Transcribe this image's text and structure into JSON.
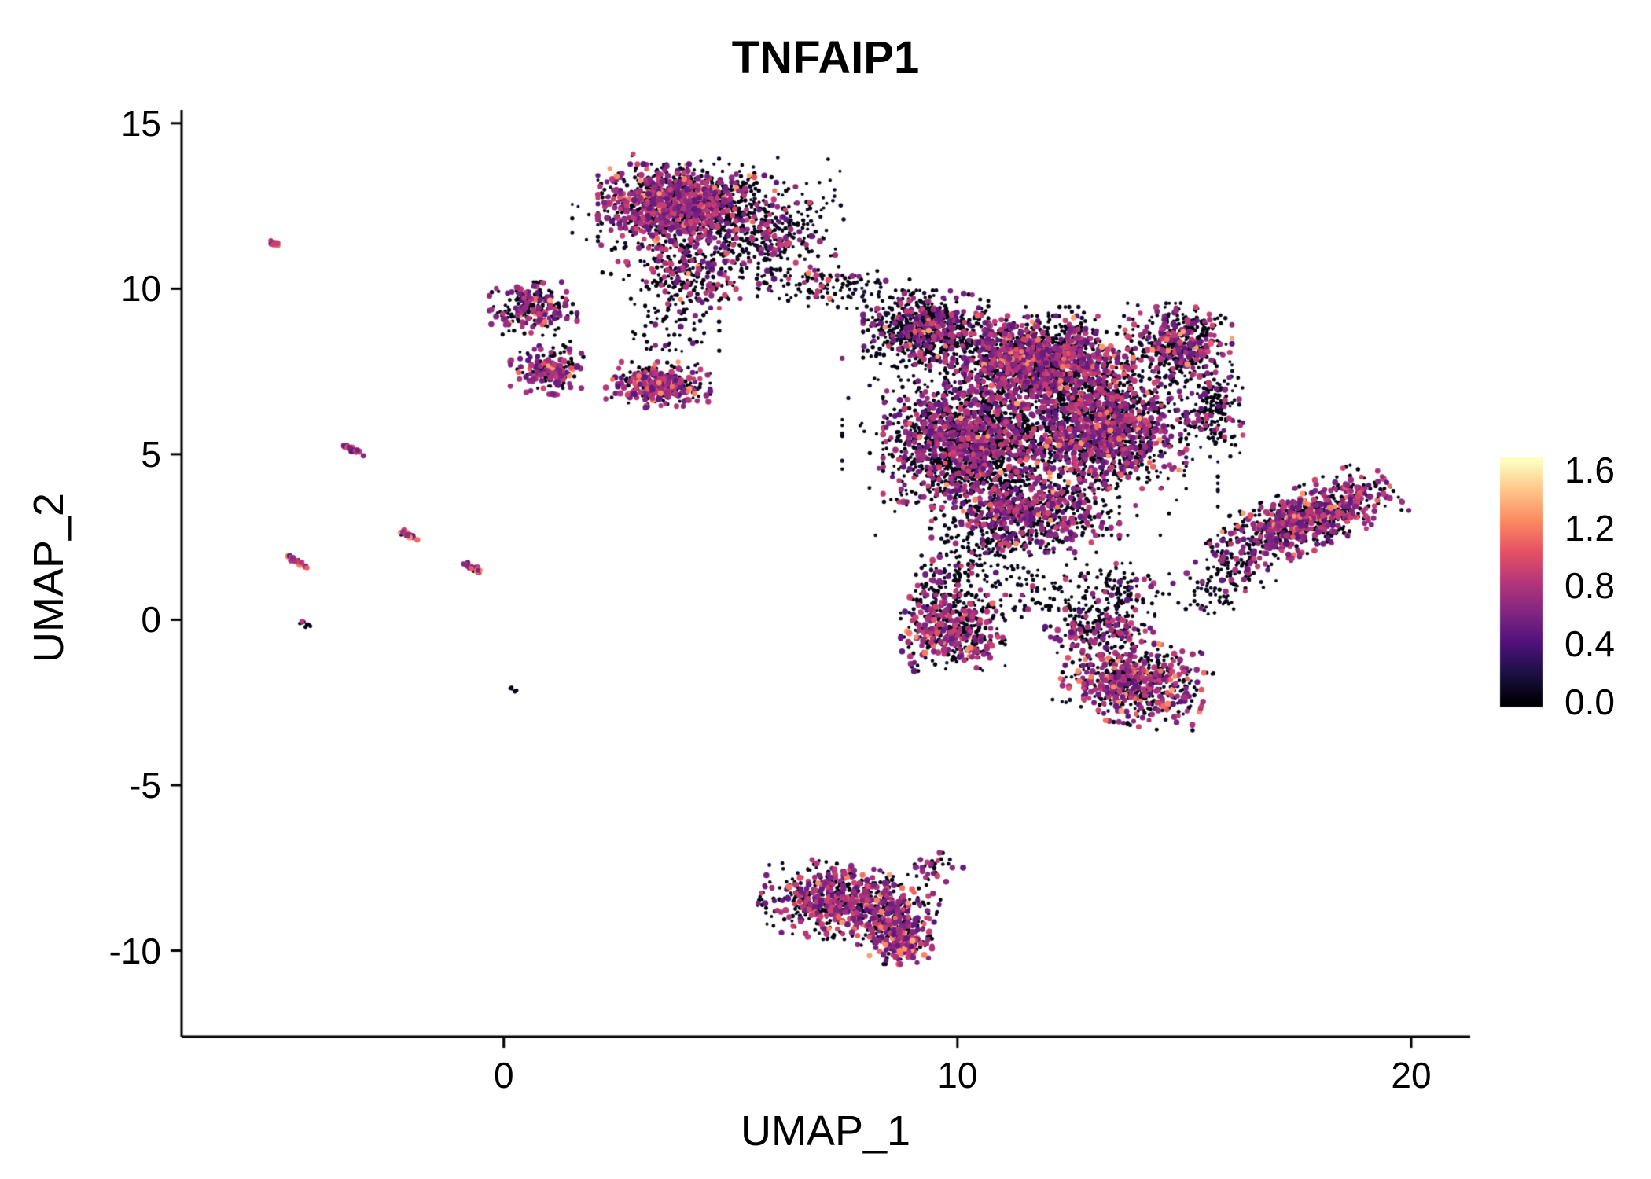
{
  "chart_data": {
    "type": "scatter",
    "title": "TNFAIP1",
    "xlabel": "UMAP_1",
    "ylabel": "UMAP_2",
    "xlim": [
      -7.1,
      21.3
    ],
    "ylim": [
      -12.6,
      15.4
    ],
    "grid": false,
    "xticks": [
      {
        "value": 0,
        "label": "0"
      },
      {
        "value": 10,
        "label": "10"
      },
      {
        "value": 20,
        "label": "20"
      }
    ],
    "yticks": [
      {
        "value": 15,
        "label": "15"
      },
      {
        "value": 10,
        "label": "10"
      },
      {
        "value": 5,
        "label": "5"
      },
      {
        "value": 0,
        "label": "0"
      },
      {
        "value": -5,
        "label": "-5"
      },
      {
        "value": -10,
        "label": "-10"
      }
    ],
    "legend": {
      "position": "right",
      "min": 0,
      "max": 1.66,
      "ticks": [
        {
          "value": 0.0,
          "label": "0.0"
        },
        {
          "value": 0.4,
          "label": "0.4"
        },
        {
          "value": 0.8,
          "label": "0.8"
        },
        {
          "value": 1.2,
          "label": "1.2"
        },
        {
          "value": 1.6,
          "label": "1.6"
        }
      ]
    },
    "colormap": [
      {
        "t": 0.0,
        "color": "#000004"
      },
      {
        "t": 0.125,
        "color": "#1d1147"
      },
      {
        "t": 0.25,
        "color": "#51127c"
      },
      {
        "t": 0.375,
        "color": "#822681"
      },
      {
        "t": 0.5,
        "color": "#b63679"
      },
      {
        "t": 0.625,
        "color": "#e65164"
      },
      {
        "t": 0.75,
        "color": "#fb8861"
      },
      {
        "t": 0.875,
        "color": "#fec287"
      },
      {
        "t": 1.0,
        "color": "#fcfdbf"
      }
    ],
    "seed": 20240613,
    "clusters": [
      {
        "name": "top-cluster-core",
        "cx": 3.8,
        "cy": 12.5,
        "sx": 0.75,
        "sy": 0.55,
        "angle": 0,
        "n": 1050,
        "f0": 0.5,
        "fmid": 0.46,
        "fhigh": 0.04
      },
      {
        "name": "top-cluster-east",
        "cx": 5.7,
        "cy": 11.6,
        "sx": 0.7,
        "sy": 0.7,
        "angle": 0,
        "n": 380,
        "f0": 0.82,
        "fmid": 0.17,
        "fhigh": 0.01
      },
      {
        "name": "top-cluster-south",
        "cx": 4.0,
        "cy": 10.4,
        "sx": 0.55,
        "sy": 0.45,
        "angle": 0,
        "n": 200,
        "f0": 0.7,
        "fmid": 0.28,
        "fhigh": 0.02
      },
      {
        "name": "top-cluster-halo",
        "cx": 4.5,
        "cy": 12.0,
        "sx": 1.3,
        "sy": 1.0,
        "angle": 0,
        "n": 220,
        "f0": 0.85,
        "fmid": 0.14,
        "fhigh": 0.01
      },
      {
        "name": "left-cluster-upper",
        "cx": 0.65,
        "cy": 9.4,
        "sx": 0.42,
        "sy": 0.35,
        "angle": 0,
        "n": 230,
        "f0": 0.55,
        "fmid": 0.41,
        "fhigh": 0.04
      },
      {
        "name": "left-cluster-lower",
        "cx": 0.95,
        "cy": 7.6,
        "sx": 0.35,
        "sy": 0.35,
        "angle": 0,
        "n": 190,
        "f0": 0.5,
        "fmid": 0.45,
        "fhigh": 0.05
      },
      {
        "name": "mid-small-cluster",
        "cx": 3.4,
        "cy": 7.1,
        "sx": 0.5,
        "sy": 0.3,
        "angle": 0,
        "n": 330,
        "f0": 0.5,
        "fmid": 0.45,
        "fhigh": 0.05
      },
      {
        "name": "mid-sparse-link",
        "cx": 3.6,
        "cy": 9.0,
        "sx": 0.5,
        "sy": 0.6,
        "angle": 0,
        "n": 90,
        "f0": 0.9,
        "fmid": 0.1,
        "fhigh": 0.0
      },
      {
        "name": "bridge-sparse",
        "cx": 7.3,
        "cy": 10.1,
        "sx": 0.75,
        "sy": 0.3,
        "angle": 0,
        "n": 130,
        "f0": 0.88,
        "fmid": 0.11,
        "fhigh": 0.01
      },
      {
        "name": "main-nw",
        "cx": 9.3,
        "cy": 8.8,
        "sx": 0.6,
        "sy": 0.5,
        "angle": 0,
        "n": 750,
        "f0": 0.78,
        "fmid": 0.21,
        "fhigh": 0.01
      },
      {
        "name": "main-north",
        "cx": 11.8,
        "cy": 7.8,
        "sx": 0.9,
        "sy": 0.6,
        "angle": 0,
        "n": 1500,
        "f0": 0.6,
        "fmid": 0.37,
        "fhigh": 0.03
      },
      {
        "name": "main-west",
        "cx": 10.2,
        "cy": 5.4,
        "sx": 0.8,
        "sy": 0.8,
        "angle": 0,
        "n": 1400,
        "f0": 0.68,
        "fmid": 0.3,
        "fhigh": 0.02
      },
      {
        "name": "main-east",
        "cx": 13.2,
        "cy": 5.8,
        "sx": 0.8,
        "sy": 0.8,
        "angle": 0,
        "n": 1300,
        "f0": 0.62,
        "fmid": 0.35,
        "fhigh": 0.03
      },
      {
        "name": "main-ne-arm",
        "cx": 14.9,
        "cy": 8.3,
        "sx": 0.5,
        "sy": 0.55,
        "angle": 0,
        "n": 450,
        "f0": 0.7,
        "fmid": 0.28,
        "fhigh": 0.02
      },
      {
        "name": "main-e-edge",
        "cx": 15.6,
        "cy": 6.4,
        "sx": 0.3,
        "sy": 0.7,
        "angle": 0,
        "n": 200,
        "f0": 0.8,
        "fmid": 0.19,
        "fhigh": 0.01
      },
      {
        "name": "main-south",
        "cx": 11.5,
        "cy": 3.3,
        "sx": 0.9,
        "sy": 0.55,
        "angle": 0,
        "n": 750,
        "f0": 0.68,
        "fmid": 0.3,
        "fhigh": 0.02
      },
      {
        "name": "main-halo",
        "cx": 11.6,
        "cy": 6.0,
        "sx": 1.8,
        "sy": 1.5,
        "angle": 0,
        "n": 650,
        "f0": 0.87,
        "fmid": 0.12,
        "fhigh": 0.01
      },
      {
        "name": "main-south-tail",
        "cx": 10.6,
        "cy": 1.9,
        "sx": 0.5,
        "sy": 0.5,
        "angle": 0,
        "n": 120,
        "f0": 0.85,
        "fmid": 0.15,
        "fhigh": 0.0
      },
      {
        "name": "lower-left-cluster",
        "cx": 9.9,
        "cy": -0.4,
        "sx": 0.5,
        "sy": 0.5,
        "angle": 0,
        "n": 420,
        "f0": 0.55,
        "fmid": 0.4,
        "fhigh": 0.05
      },
      {
        "name": "lower-left-link",
        "cx": 9.7,
        "cy": 0.9,
        "sx": 0.35,
        "sy": 0.45,
        "angle": 0,
        "n": 130,
        "f0": 0.8,
        "fmid": 0.2,
        "fhigh": 0.0
      },
      {
        "name": "lower-right-cluster",
        "cx": 13.9,
        "cy": -1.9,
        "sx": 0.7,
        "sy": 0.55,
        "angle": -15,
        "n": 650,
        "f0": 0.52,
        "fmid": 0.43,
        "fhigh": 0.05
      },
      {
        "name": "lower-right-top",
        "cx": 13.2,
        "cy": -0.3,
        "sx": 0.5,
        "sy": 0.35,
        "angle": 0,
        "n": 180,
        "f0": 0.7,
        "fmid": 0.28,
        "fhigh": 0.02
      },
      {
        "name": "lower-right-link",
        "cx": 13.6,
        "cy": 0.9,
        "sx": 0.5,
        "sy": 0.4,
        "angle": 0,
        "n": 80,
        "f0": 0.9,
        "fmid": 0.1,
        "fhigh": 0.0
      },
      {
        "name": "right-wing",
        "cx": 17.6,
        "cy": 3.0,
        "sx": 0.95,
        "sy": 0.4,
        "angle": 30,
        "n": 850,
        "f0": 0.55,
        "fmid": 0.4,
        "fhigh": 0.05
      },
      {
        "name": "right-wing-foot",
        "cx": 16.1,
        "cy": 1.6,
        "sx": 0.4,
        "sy": 0.3,
        "angle": 0,
        "n": 70,
        "f0": 0.8,
        "fmid": 0.2,
        "fhigh": 0.0
      },
      {
        "name": "bottom-cluster",
        "cx": 7.6,
        "cy": -8.6,
        "sx": 0.85,
        "sy": 0.5,
        "angle": -12,
        "n": 780,
        "f0": 0.55,
        "fmid": 0.4,
        "fhigh": 0.05
      },
      {
        "name": "bottom-cluster-tip",
        "cx": 8.75,
        "cy": -9.6,
        "sx": 0.3,
        "sy": 0.35,
        "angle": 0,
        "n": 230,
        "f0": 0.3,
        "fmid": 0.55,
        "fhigh": 0.15
      },
      {
        "name": "bottom-cluster-stray",
        "cx": 9.55,
        "cy": -7.5,
        "sx": 0.25,
        "sy": 0.2,
        "angle": 0,
        "n": 30,
        "f0": 0.6,
        "fmid": 0.4,
        "fhigh": 0.0
      },
      {
        "name": "streak-1",
        "cx": -5.05,
        "cy": 11.4,
        "sx": 0.07,
        "sy": 0.03,
        "angle": -35,
        "n": 14,
        "f0": 0.25,
        "fmid": 0.6,
        "fhigh": 0.15
      },
      {
        "name": "streak-2",
        "cx": -3.35,
        "cy": 5.15,
        "sx": 0.14,
        "sy": 0.035,
        "angle": -35,
        "n": 32,
        "f0": 0.22,
        "fmid": 0.55,
        "fhigh": 0.23
      },
      {
        "name": "streak-3",
        "cx": -4.55,
        "cy": 1.75,
        "sx": 0.13,
        "sy": 0.035,
        "angle": -35,
        "n": 26,
        "f0": 0.3,
        "fmid": 0.5,
        "fhigh": 0.2
      },
      {
        "name": "streak-4",
        "cx": -2.1,
        "cy": 2.55,
        "sx": 0.12,
        "sy": 0.035,
        "angle": -35,
        "n": 24,
        "f0": 0.3,
        "fmid": 0.55,
        "fhigh": 0.15
      },
      {
        "name": "streak-5",
        "cx": -0.68,
        "cy": 1.55,
        "sx": 0.13,
        "sy": 0.035,
        "angle": -35,
        "n": 24,
        "f0": 0.28,
        "fmid": 0.52,
        "fhigh": 0.2
      },
      {
        "name": "dot-left-1",
        "cx": -4.35,
        "cy": -0.15,
        "sx": 0.06,
        "sy": 0.03,
        "angle": -35,
        "n": 10,
        "f0": 0.75,
        "fmid": 0.25,
        "fhigh": 0.0
      },
      {
        "name": "dot-left-2",
        "cx": 0.2,
        "cy": -2.1,
        "sx": 0.05,
        "sy": 0.03,
        "angle": 0,
        "n": 6,
        "f0": 0.95,
        "fmid": 0.05,
        "fhigh": 0.0
      },
      {
        "name": "scatter-mid-low",
        "cx": 12.0,
        "cy": 0.8,
        "sx": 1.1,
        "sy": 0.5,
        "angle": 0,
        "n": 130,
        "f0": 0.88,
        "fmid": 0.12,
        "fhigh": 0.0
      },
      {
        "name": "scatter-wing-gap",
        "cx": 15.5,
        "cy": 0.9,
        "sx": 0.4,
        "sy": 0.4,
        "angle": 0,
        "n": 55,
        "f0": 0.85,
        "fmid": 0.15,
        "fhigh": 0.0
      }
    ]
  },
  "colors": {
    "axis": "#000000",
    "text": "#000000",
    "background": "#ffffff"
  }
}
